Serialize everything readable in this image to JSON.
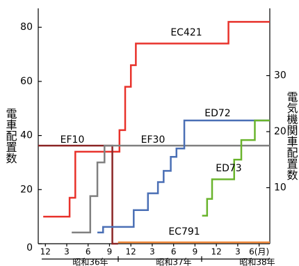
{
  "chart_data": {
    "type": "step",
    "ylabel": "電車配置数",
    "y2label": "電気機関車配置数",
    "xlim": [
      -1,
      31.5
    ],
    "ylim": [
      0,
      87
    ],
    "y2lim": [
      0,
      42
    ],
    "yticks": [
      0,
      20,
      40,
      60,
      80
    ],
    "y2ticks": [
      10,
      20,
      30
    ],
    "xticks": [
      {
        "value": 0,
        "label": "12"
      },
      {
        "value": 3,
        "label": "3"
      },
      {
        "value": 6,
        "label": "6"
      },
      {
        "value": 9,
        "label": "9"
      },
      {
        "value": 12,
        "label": "12"
      },
      {
        "value": 15,
        "label": "3"
      },
      {
        "value": 18,
        "label": "6"
      },
      {
        "value": 21,
        "label": "9"
      },
      {
        "value": 24,
        "label": "12"
      },
      {
        "value": 27,
        "label": "3"
      },
      {
        "value": 30,
        "label": "6(月)"
      }
    ],
    "year_labels": [
      "昭和36年",
      "昭和37年",
      "昭和38年"
    ],
    "series": [
      {
        "name": "EC421",
        "color": "#e8322b",
        "axis": "y",
        "x": [
          -0.3,
          3.4,
          4.2,
          10.4,
          11.2,
          12.0,
          12.7,
          25.7,
          31.5
        ],
        "values": [
          10,
          17,
          34,
          42,
          58,
          66,
          74,
          82,
          82
        ]
      },
      {
        "name": "EF10",
        "color": "#8b2525",
        "axis": "y2",
        "x": [
          -1,
          9.4,
          10.2
        ],
        "values": [
          17.5,
          0,
          0
        ]
      },
      {
        "name": "EF30",
        "color": "#808080",
        "axis": "y2",
        "x": [
          3.7,
          6.3,
          7.3,
          8.3,
          31.5
        ],
        "values": [
          2,
          8.5,
          14.5,
          17.5,
          17.5
        ]
      },
      {
        "name": "ED72",
        "color": "#4a6fb5",
        "axis": "y2",
        "x": [
          7.3,
          8.1,
          12.4,
          14.4,
          15.8,
          16.6,
          17.6,
          18.4,
          19.5,
          31.5
        ],
        "values": [
          2,
          3,
          6,
          9,
          11,
          13,
          15.5,
          17,
          22,
          22
        ]
      },
      {
        "name": "ED73",
        "color": "#6ab42d",
        "axis": "y2",
        "x": [
          22,
          22.7,
          23.4,
          26.5,
          27.5,
          29.4,
          31.5
        ],
        "values": [
          5,
          8,
          11.5,
          15,
          18.5,
          22,
          22
        ]
      },
      {
        "name": "EC791",
        "color": "#f08a3c",
        "axis": "y",
        "x": [
          10.2,
          31.5
        ],
        "values": [
          0.5,
          0.5
        ]
      }
    ]
  }
}
